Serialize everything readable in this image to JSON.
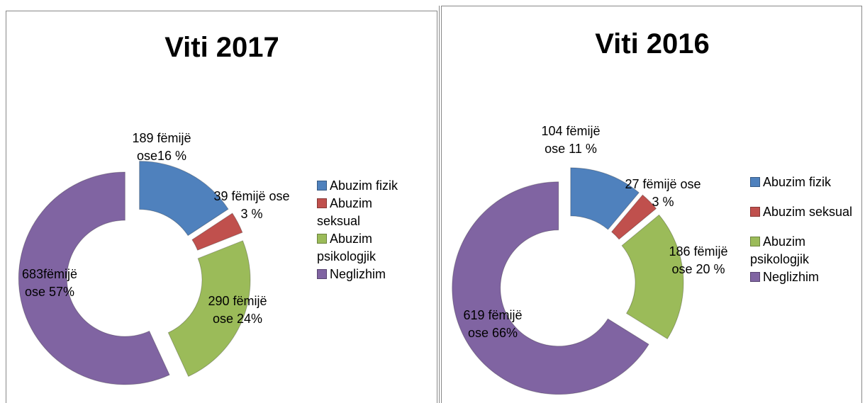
{
  "chart_data": [
    {
      "type": "donut",
      "title": "Viti 2017",
      "categories": [
        "Abuzim fizik",
        "Abuzim seksual",
        "Abuzim psikologjik",
        "Neglizhim"
      ],
      "values": [
        189,
        39,
        290,
        683
      ],
      "value_labels": [
        "189 fëmijë ose16 %",
        "39 fëmijë ose 3 %",
        "290 fëmijë ose 24%",
        "683fëmijë ose 57%"
      ],
      "colors": [
        "#4f81bd",
        "#c0504d",
        "#9bbb59",
        "#8064a2"
      ]
    },
    {
      "type": "donut",
      "title": "Viti 2016",
      "categories": [
        "Abuzim fizik",
        "Abuzim seksual",
        "Abuzim psikologjik",
        "Neglizhim"
      ],
      "values": [
        104,
        27,
        186,
        619
      ],
      "value_labels": [
        "104 fëmijë ose 11 %",
        "27 fëmijë ose 3 %",
        "186 fëmijë ose 20 %",
        "619 fëmijë ose 66%"
      ],
      "colors": [
        "#4f81bd",
        "#c0504d",
        "#9bbb59",
        "#8064a2"
      ]
    }
  ]
}
